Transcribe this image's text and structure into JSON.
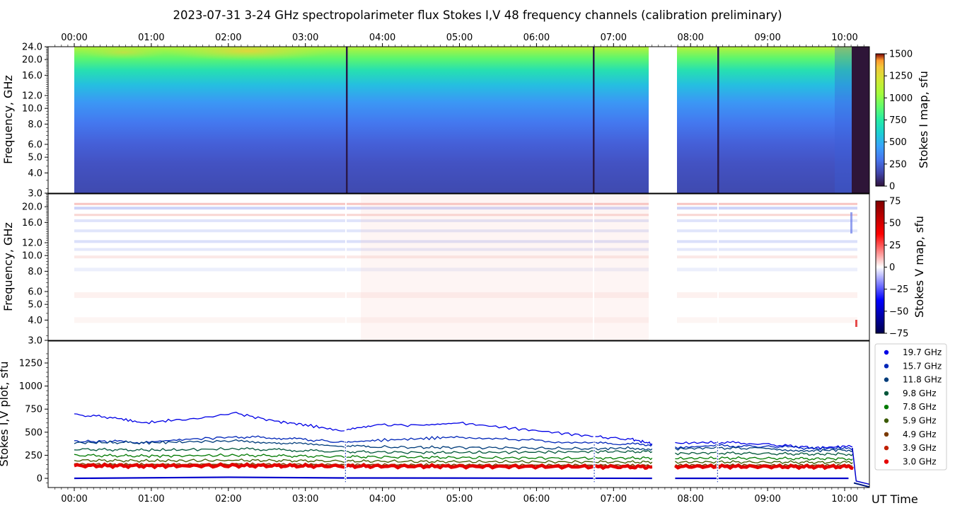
{
  "title": "2023-07-31     3-24 GHz spectropolarimeter flux   Stokes I,V   48 frequency channels   (calibration preliminary)",
  "time_axis": {
    "ticks": [
      "00:00",
      "01:00",
      "02:00",
      "03:00",
      "04:00",
      "05:00",
      "06:00",
      "07:00",
      "08:00",
      "09:00",
      "10:00"
    ],
    "label": "UT Time"
  },
  "chart_data": [
    {
      "type": "heatmap",
      "panel": "stokes-i-map",
      "ylabel": "Frequency, GHz",
      "yticks": [
        "24.0",
        "20.0",
        "16.0",
        "12.0",
        "10.0",
        "8.0",
        "6.0",
        "5.0",
        "4.0",
        "3.0"
      ],
      "ylim": [
        3.0,
        24.0
      ],
      "yscale": "log",
      "xlim": [
        "-00:20",
        "10:20"
      ],
      "data_span": [
        "00:00",
        "10:10"
      ],
      "gap": [
        "07:30",
        "07:48"
      ],
      "dropouts": [
        "03:32",
        "06:45",
        "08:22"
      ],
      "colormap": "turbo-like",
      "colorbar": {
        "label": "Stokes I map, sfu",
        "ticks": [
          "1500",
          "1250",
          "1000",
          "750",
          "500",
          "250",
          "0"
        ],
        "range": [
          0,
          1500
        ]
      }
    },
    {
      "type": "heatmap",
      "panel": "stokes-v-map",
      "ylabel": "Frequency, GHz",
      "yticks": [
        "20.0",
        "16.0",
        "12.0",
        "10.0",
        "8.0",
        "6.0",
        "5.0",
        "4.0",
        "3.0"
      ],
      "ylim": [
        3.0,
        24.0
      ],
      "yscale": "log",
      "colormap": "seismic",
      "colorbar": {
        "label": "Stokes V map, sfu",
        "ticks": [
          "75",
          "50",
          "25",
          "0",
          "−25",
          "−50",
          "−75"
        ],
        "range": [
          -75,
          75
        ]
      }
    },
    {
      "type": "line",
      "panel": "stokes-iv-plot",
      "ylabel": "Stokes I,V plot, sfu",
      "yticks": [
        "1250",
        "1000",
        "750",
        "500",
        "250",
        "0"
      ],
      "ylim": [
        -100,
        1400
      ],
      "x_hours": [
        0.0,
        0.5,
        0.9,
        1.4,
        2.1,
        2.6,
        3.0,
        3.5,
        3.9,
        4.5,
        5.0,
        5.6,
        6.2,
        6.8,
        7.25,
        7.5
      ],
      "x2_hours": [
        7.8,
        8.3,
        8.8,
        9.3,
        9.6,
        10.0,
        10.1
      ],
      "series": [
        {
          "name": "19.7 GHz",
          "color": "#0000e6",
          "values": [
            690,
            660,
            600,
            640,
            705,
            620,
            580,
            510,
            580,
            575,
            600,
            550,
            500,
            450,
            420,
            375
          ],
          "values2": [
            380,
            390,
            380,
            350,
            330,
            345,
            340
          ]
        },
        {
          "name": "15.7 GHz",
          "color": "#0026b8",
          "values": [
            400,
            400,
            390,
            420,
            450,
            440,
            420,
            390,
            410,
            430,
            450,
            430,
            400,
            380,
            370,
            365
          ],
          "values2": [
            330,
            355,
            345,
            340,
            320,
            330,
            325
          ]
        },
        {
          "name": "11.8 GHz",
          "color": "#003c7a",
          "values": [
            385,
            390,
            385,
            395,
            405,
            390,
            370,
            350,
            340,
            335,
            335,
            330,
            325,
            320,
            330,
            320
          ],
          "values2": [
            320,
            330,
            325,
            310,
            300,
            310,
            305
          ]
        },
        {
          "name": "9.8 GHz",
          "color": "#00563a",
          "values": [
            315,
            310,
            305,
            310,
            320,
            310,
            300,
            290,
            285,
            280,
            280,
            282,
            285,
            290,
            290,
            288
          ],
          "values2": [
            270,
            275,
            270,
            265,
            262,
            265,
            262
          ]
        },
        {
          "name": "7.8 GHz",
          "color": "#007a00",
          "values": [
            250,
            245,
            242,
            245,
            250,
            245,
            240,
            235,
            232,
            228,
            225,
            222,
            220,
            218,
            220,
            220
          ],
          "values2": [
            215,
            220,
            218,
            215,
            212,
            214,
            212
          ]
        },
        {
          "name": "5.9 GHz",
          "color": "#3a5a00",
          "values": [
            195,
            192,
            190,
            192,
            195,
            193,
            190,
            186,
            185,
            182,
            180,
            180,
            178,
            178,
            176,
            176
          ],
          "values2": [
            175,
            178,
            176,
            175,
            173,
            174,
            173
          ]
        },
        {
          "name": "4.9 GHz",
          "color": "#7a3a00",
          "values": [
            152,
            150,
            148,
            150,
            152,
            150,
            148,
            145,
            144,
            143,
            142,
            141,
            140,
            140,
            138,
            138
          ],
          "values2": [
            140,
            141,
            140,
            139,
            138,
            139,
            138
          ]
        },
        {
          "name": "3.9 GHz",
          "color": "#c02000",
          "values": [
            142,
            140,
            138,
            140,
            142,
            140,
            138,
            136,
            135,
            134,
            133,
            132,
            131,
            130,
            128,
            128
          ],
          "values2": [
            131,
            132,
            131,
            130,
            129,
            130,
            129
          ]
        },
        {
          "name": "3.0 GHz",
          "color": "#e60000",
          "values": [
            135,
            134,
            132,
            134,
            136,
            134,
            132,
            130,
            129,
            128,
            127,
            126,
            125,
            124,
            122,
            122
          ],
          "values2": [
            125,
            126,
            125,
            124,
            123,
            124,
            123
          ]
        }
      ]
    }
  ]
}
